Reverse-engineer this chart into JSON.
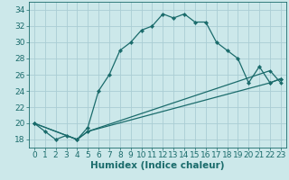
{
  "xlabel": "Humidex (Indice chaleur)",
  "xlim": [
    -0.5,
    23.5
  ],
  "ylim": [
    17.0,
    35.0
  ],
  "yticks": [
    18,
    20,
    22,
    24,
    26,
    28,
    30,
    32,
    34
  ],
  "xticks": [
    0,
    1,
    2,
    3,
    4,
    5,
    6,
    7,
    8,
    9,
    10,
    11,
    12,
    13,
    14,
    15,
    16,
    17,
    18,
    19,
    20,
    21,
    22,
    23
  ],
  "bg_color": "#cce8ea",
  "line_color": "#1a6b6b",
  "grid_color": "#aacdd4",
  "line1_x": [
    0,
    1,
    2,
    3,
    4,
    5,
    6,
    7,
    8,
    9,
    10,
    11,
    12,
    13,
    14,
    15,
    16,
    17,
    18,
    19,
    20,
    21,
    22,
    23
  ],
  "line1_y": [
    20,
    19,
    18,
    18.5,
    18,
    19.5,
    24,
    26,
    29,
    30,
    31.5,
    32,
    33.5,
    33,
    33.5,
    32.5,
    32.5,
    30,
    29,
    28,
    25,
    27,
    25,
    25.5
  ],
  "line2_x": [
    0,
    4,
    5,
    22,
    23
  ],
  "line2_y": [
    20,
    18,
    19,
    26.5,
    25
  ],
  "line3_x": [
    0,
    4,
    5,
    22,
    23
  ],
  "line3_y": [
    20,
    18,
    19,
    25,
    25.5
  ],
  "title_fontsize": 8,
  "tick_fontsize": 6.5,
  "label_fontsize": 7.5
}
